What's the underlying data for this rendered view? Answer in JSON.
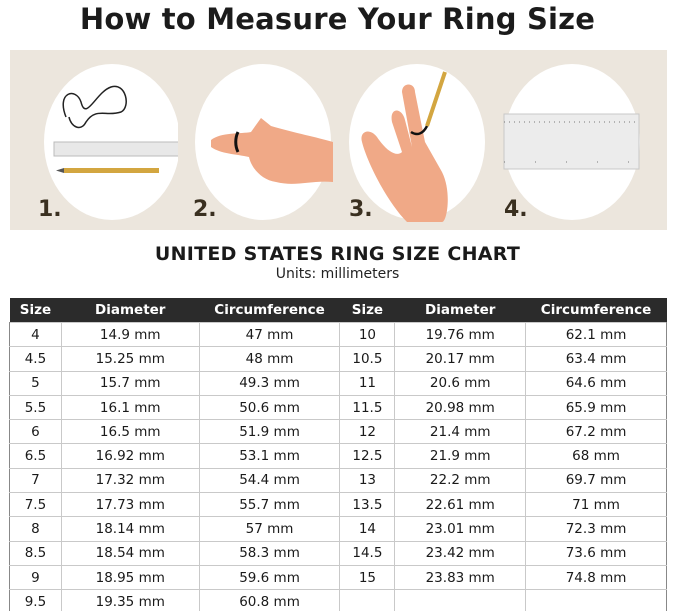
{
  "title": "How to Measure Your Ring Size",
  "steps": [
    {
      "number": "1.",
      "icon": "string-ruler-pencil-icon"
    },
    {
      "number": "2.",
      "icon": "string-around-finger-icon"
    },
    {
      "number": "3.",
      "icon": "mark-string-with-pencil-icon"
    },
    {
      "number": "4.",
      "icon": "measure-on-ruler-icon"
    }
  ],
  "chart": {
    "heading": "UNITED STATES RING SIZE CHART",
    "units": "Units: millimeters",
    "columns": [
      "Size",
      "Diameter",
      "Circumference",
      "Size",
      "Diameter",
      "Circumference"
    ],
    "rows": [
      [
        "4",
        "14.9 mm",
        "47 mm",
        "10",
        "19.76 mm",
        "62.1 mm"
      ],
      [
        "4.5",
        "15.25 mm",
        "48 mm",
        "10.5",
        "20.17 mm",
        "63.4 mm"
      ],
      [
        "5",
        "15.7 mm",
        "49.3 mm",
        "11",
        "20.6 mm",
        "64.6 mm"
      ],
      [
        "5.5",
        "16.1 mm",
        "50.6 mm",
        "11.5",
        "20.98 mm",
        "65.9 mm"
      ],
      [
        "6",
        "16.5 mm",
        "51.9 mm",
        "12",
        "21.4 mm",
        "67.2 mm"
      ],
      [
        "6.5",
        "16.92 mm",
        "53.1 mm",
        "12.5",
        "21.9 mm",
        "68 mm"
      ],
      [
        "7",
        "17.32 mm",
        "54.4 mm",
        "13",
        "22.2 mm",
        "69.7 mm"
      ],
      [
        "7.5",
        "17.73 mm",
        "55.7 mm",
        "13.5",
        "22.61 mm",
        "71 mm"
      ],
      [
        "8",
        "18.14 mm",
        "57 mm",
        "14",
        "23.01 mm",
        "72.3 mm"
      ],
      [
        "8.5",
        "18.54 mm",
        "58.3 mm",
        "14.5",
        "23.42 mm",
        "73.6 mm"
      ],
      [
        "9",
        "18.95 mm",
        "59.6 mm",
        "15",
        "23.83 mm",
        "74.8 mm"
      ],
      [
        "9.5",
        "19.35 mm",
        "60.8 mm",
        "",
        "",
        " "
      ]
    ]
  },
  "colors": {
    "panel": "#ece6dd",
    "header": "#2b2b2b",
    "skin": "#f0a987"
  }
}
